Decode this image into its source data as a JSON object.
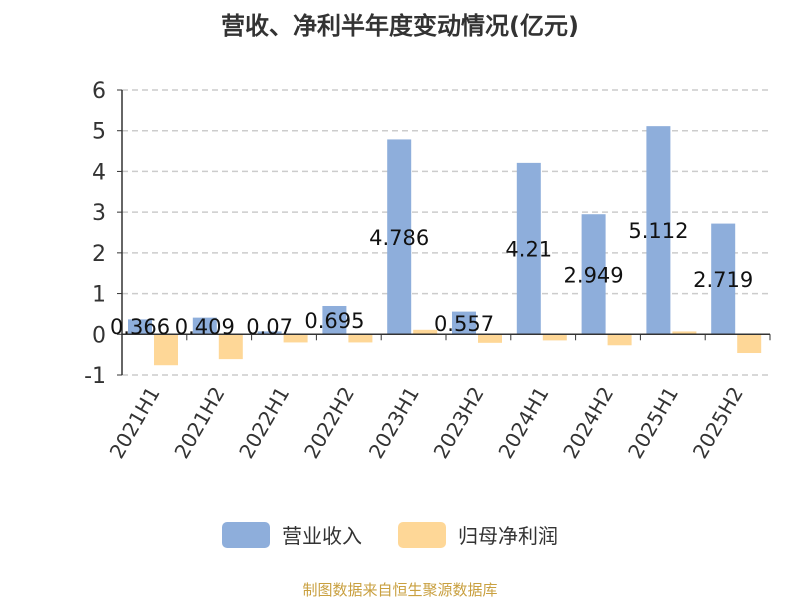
{
  "chart_data": {
    "type": "bar",
    "title": "营收、净利半年度变动情况(亿元)",
    "categories": [
      "2021H1",
      "2021H2",
      "2022H1",
      "2022H2",
      "2023H1",
      "2023H2",
      "2024H1",
      "2024H2",
      "2025H1",
      "2025H2"
    ],
    "series": [
      {
        "name": "营业收入",
        "color": "#8eaedb",
        "values": [
          0.366,
          0.409,
          0.07,
          0.695,
          4.786,
          0.557,
          4.21,
          2.949,
          5.112,
          2.719
        ],
        "labels": [
          "0.366",
          "0.409",
          "0.07",
          "0.695",
          "4.786",
          "0.557",
          "4.21",
          "2.949",
          "5.112",
          "2.719"
        ]
      },
      {
        "name": "归母净利润",
        "color": "#fed797",
        "values": [
          -0.76,
          -0.61,
          -0.2,
          -0.2,
          0.11,
          -0.21,
          -0.15,
          -0.27,
          0.07,
          -0.46
        ]
      }
    ],
    "yticks": [
      6,
      5,
      4,
      3,
      2,
      1,
      0,
      -1
    ],
    "ylim": [
      -1,
      6
    ],
    "grid": true,
    "legend": "bottom"
  },
  "footer": "制图数据来自恒生聚源数据库"
}
